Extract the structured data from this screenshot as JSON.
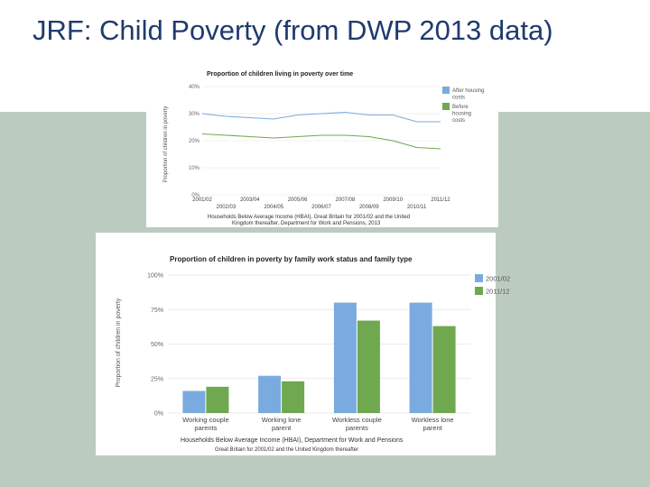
{
  "slide": {
    "title": "JRF: Child Poverty (from DWP 2013 data)",
    "colors": {
      "title": "#1f3a6e",
      "band": "#bccbc0",
      "series_blue": "#7aabdf",
      "series_green": "#6fa84f"
    }
  },
  "chart_data": [
    {
      "type": "line",
      "title": "Proportion of children living in poverty over time",
      "ylabel": "Proportion of children in poverty",
      "ylim": [
        0,
        40
      ],
      "yticks": [
        0,
        10,
        20,
        30,
        40
      ],
      "ytick_labels": [
        "0%",
        "10%",
        "20%",
        "30%",
        "40%"
      ],
      "x": [
        "2001/02",
        "2002/03",
        "2003/04",
        "2004/05",
        "2005/06",
        "2006/07",
        "2007/08",
        "2008/09",
        "2009/10",
        "2010/11",
        "2011/12"
      ],
      "xtick_labels_row1": [
        "2001/02",
        "2003/04",
        "2005/06",
        "2007/08",
        "2009/10",
        "2011/12"
      ],
      "xtick_labels_row2": [
        "2002/03",
        "2004/05",
        "2006/07",
        "2008/09",
        "2010/11"
      ],
      "series": [
        {
          "name": "After housing costs",
          "values": [
            30,
            29,
            28.5,
            28,
            29.5,
            30,
            30.5,
            29.5,
            29.5,
            27,
            27
          ]
        },
        {
          "name": "Before housing costs",
          "values": [
            22.5,
            22,
            21.5,
            21,
            21.5,
            22,
            22,
            21.5,
            20,
            17.5,
            17
          ]
        }
      ],
      "legend": {
        "position": "right",
        "entries": [
          {
            "lines": [
              "After housing",
              "costs"
            ]
          },
          {
            "lines": [
              "Before",
              "housing",
              "costs"
            ]
          }
        ]
      },
      "source_lines": [
        "Households Below Average Income (HBAI), Great Britain for 2001/02 and the United",
        "Kingdom thereafter, Department for Work and Pensions, 2013"
      ]
    },
    {
      "type": "bar",
      "title": "Proportion of children in poverty by family work status and family type",
      "ylabel": "Proportion of children in poverty",
      "ylim": [
        0,
        100
      ],
      "yticks": [
        0,
        25,
        50,
        75,
        100
      ],
      "ytick_labels": [
        "0%",
        "25%",
        "50%",
        "75%",
        "100%"
      ],
      "categories": [
        {
          "lines": [
            "Working couple",
            "parents"
          ]
        },
        {
          "lines": [
            "Working lone",
            "parent"
          ]
        },
        {
          "lines": [
            "Workless couple",
            "parents"
          ]
        },
        {
          "lines": [
            "Workless lone",
            "parent"
          ]
        }
      ],
      "series": [
        {
          "name": "2001/02",
          "values": [
            16,
            27,
            80,
            80
          ]
        },
        {
          "name": "2011/12",
          "values": [
            19,
            23,
            67,
            63
          ]
        }
      ],
      "legend": {
        "position": "right"
      },
      "source_lines": [
        "Households Below Average Income (HBAI), Department for Work and Pensions",
        "Great Britain for 2001/02 and the United Kingdom thereafter"
      ]
    }
  ]
}
